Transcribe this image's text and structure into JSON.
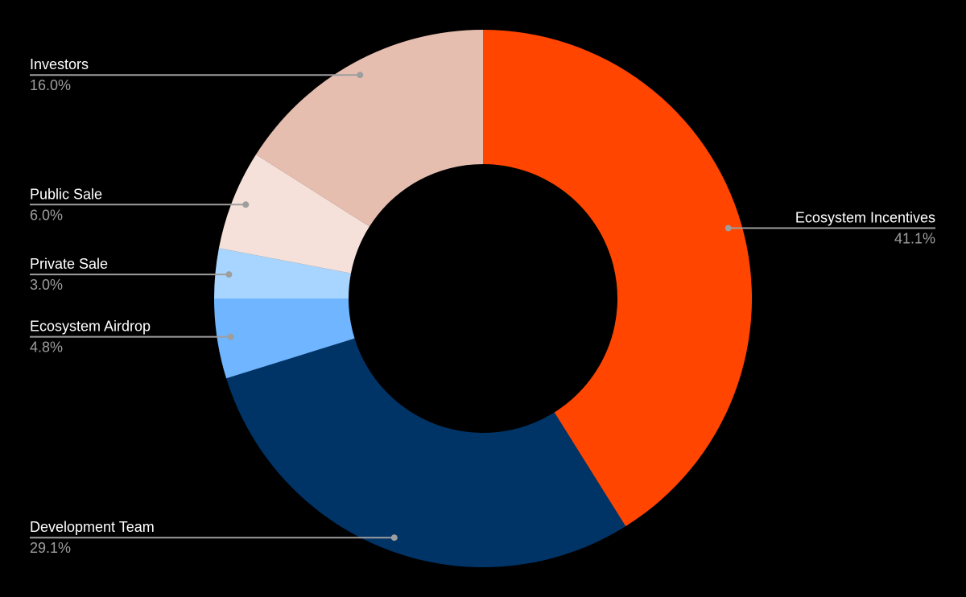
{
  "chart_data": {
    "type": "pie",
    "donut": true,
    "start": "top, clockwise",
    "legend": "none (slice labels with leader lines)",
    "slices": [
      {
        "label": "Ecosystem Incentives",
        "value": 41.1,
        "value_label": "41.1%",
        "color": "#ff4500",
        "label_side": "right"
      },
      {
        "label": "Development Team",
        "value": 29.1,
        "value_label": "29.1%",
        "color": "#003366",
        "label_side": "left"
      },
      {
        "label": "Ecosystem Airdrop",
        "value": 4.8,
        "value_label": "4.8%",
        "color": "#6fb5ff",
        "label_side": "left"
      },
      {
        "label": "Private Sale",
        "value": 3.0,
        "value_label": "3.0%",
        "color": "#a8d5ff",
        "label_side": "left"
      },
      {
        "label": "Public Sale",
        "value": 6.0,
        "value_label": "6.0%",
        "color": "#f5e1d9",
        "label_side": "left"
      },
      {
        "label": "Investors",
        "value": 16.0,
        "value_label": "16.0%",
        "color": "#e6beb0",
        "label_side": "left"
      }
    ],
    "background": "#000000",
    "leader_color": "#9e9e9e"
  }
}
